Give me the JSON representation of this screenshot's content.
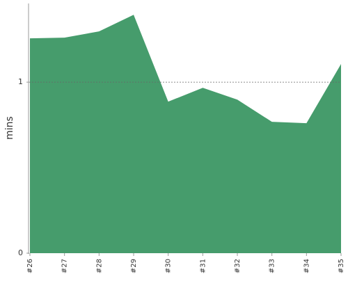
{
  "chart_data": {
    "type": "area",
    "y_label": "mins",
    "categories": [
      "#26",
      "#27",
      "#28",
      "#29",
      "#30",
      "#31",
      "#32",
      "#33",
      "#34",
      "#35"
    ],
    "values": [
      1.256,
      1.26,
      1.297,
      1.394,
      0.886,
      0.967,
      0.898,
      0.768,
      0.76,
      1.106
    ],
    "color": "#469c6c",
    "ylim": [
      0,
      1.46
    ],
    "yticks": [
      0,
      1
    ],
    "grid": true
  }
}
